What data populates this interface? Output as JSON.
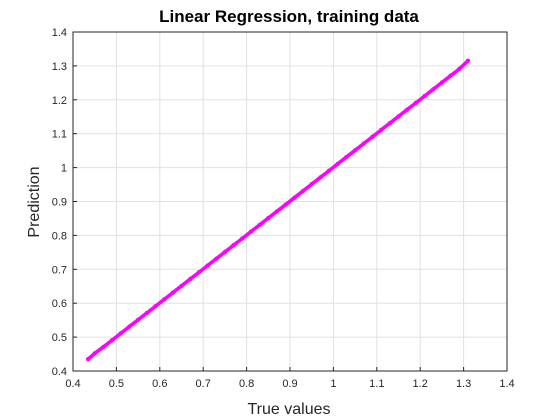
{
  "chart_data": {
    "type": "scatter",
    "title": "Linear Regression, training data",
    "xlabel": "True values",
    "ylabel": "Prediction",
    "xlim": [
      0.4,
      1.4
    ],
    "ylim": [
      0.4,
      1.4
    ],
    "xticks": [
      "0.4",
      "0.5",
      "0.6",
      "0.7",
      "0.8",
      "0.9",
      "1",
      "1.1",
      "1.2",
      "1.3",
      "1.4"
    ],
    "yticks": [
      "0.4",
      "0.5",
      "0.6",
      "0.7",
      "0.8",
      "0.9",
      "1",
      "1.1",
      "1.2",
      "1.3",
      "1.4"
    ],
    "grid": true,
    "marker_color": "#ff00ff",
    "series": [
      {
        "x": [
          0.435,
          0.45,
          0.47,
          0.49,
          0.51,
          0.53,
          0.55,
          0.57,
          0.59,
          0.61,
          0.63,
          0.65,
          0.67,
          0.69,
          0.71,
          0.73,
          0.75,
          0.77,
          0.79,
          0.81,
          0.83,
          0.85,
          0.87,
          0.89,
          0.91,
          0.93,
          0.95,
          0.97,
          0.99,
          1.01,
          1.03,
          1.05,
          1.07,
          1.09,
          1.11,
          1.13,
          1.15,
          1.17,
          1.19,
          1.21,
          1.23,
          1.25,
          1.27,
          1.29,
          1.31
        ],
        "y": [
          0.435,
          0.452,
          0.471,
          0.491,
          0.511,
          0.531,
          0.551,
          0.571,
          0.591,
          0.611,
          0.631,
          0.651,
          0.671,
          0.691,
          0.711,
          0.731,
          0.751,
          0.771,
          0.791,
          0.811,
          0.831,
          0.851,
          0.871,
          0.891,
          0.911,
          0.931,
          0.951,
          0.971,
          0.991,
          1.011,
          1.031,
          1.051,
          1.071,
          1.091,
          1.111,
          1.131,
          1.151,
          1.171,
          1.191,
          1.211,
          1.231,
          1.251,
          1.271,
          1.291,
          1.315
        ]
      }
    ]
  }
}
